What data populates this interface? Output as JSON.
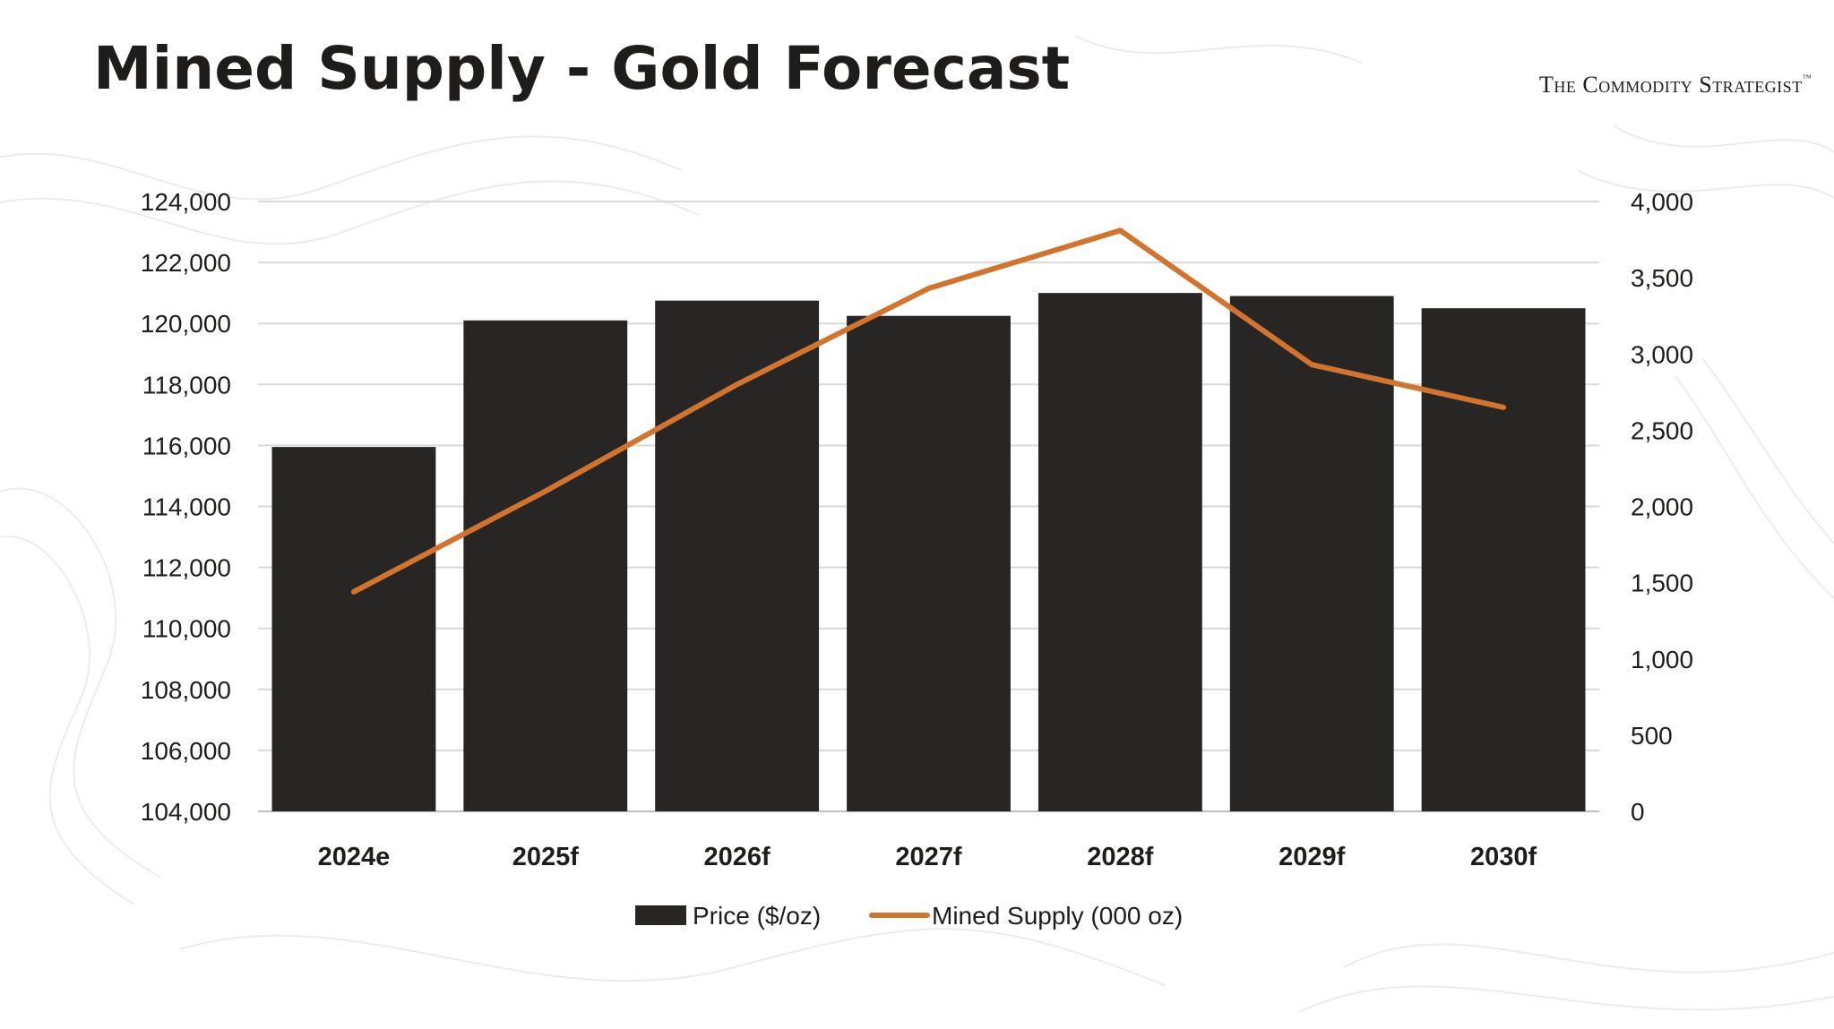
{
  "title": "Mined Supply - Gold Forecast",
  "brand": {
    "name": "The Commodity Strategist",
    "mark": "™"
  },
  "colors": {
    "bar": "#282624",
    "line": "#d2742d",
    "grid": "#d9d9d9",
    "text": "#1e1d1b"
  },
  "chart_data": {
    "type": "bar",
    "title": "Mined Supply - Gold Forecast",
    "categories": [
      "2024e",
      "2025f",
      "2026f",
      "2027f",
      "2028f",
      "2029f",
      "2030f"
    ],
    "series": [
      {
        "name": "Price ($/oz)",
        "type": "bar",
        "axis": "left",
        "values": [
          115950,
          120100,
          120750,
          120250,
          121000,
          120900,
          120500
        ]
      },
      {
        "name": "Mined Supply (000 oz)",
        "type": "line",
        "axis": "right",
        "values": [
          1440,
          2100,
          2800,
          3430,
          3810,
          2930,
          2650
        ]
      }
    ],
    "y_left": {
      "min": 104000,
      "max": 124000,
      "step": 2000,
      "ticks": [
        "104,000",
        "106,000",
        "108,000",
        "110,000",
        "112,000",
        "114,000",
        "116,000",
        "118,000",
        "120,000",
        "122,000",
        "124,000"
      ]
    },
    "y_right": {
      "min": 0,
      "max": 4000,
      "step": 500,
      "ticks": [
        "0",
        "500",
        "1,000",
        "1,500",
        "2,000",
        "2,500",
        "3,000",
        "3,500",
        "4,000"
      ]
    },
    "grid": true,
    "legend_position": "bottom"
  }
}
